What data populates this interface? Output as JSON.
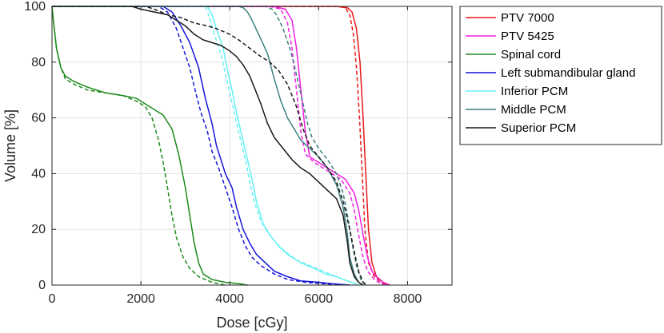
{
  "chart_data": {
    "type": "line",
    "title": "",
    "xlabel": "Dose [cGy]",
    "ylabel": "Volume [%]",
    "xlim": [
      0,
      9000
    ],
    "ylim": [
      0,
      100
    ],
    "xticks": [
      0,
      2000,
      4000,
      6000,
      8000
    ],
    "yticks": [
      0,
      20,
      40,
      60,
      80,
      100
    ],
    "xtick_labels": [
      "0",
      "2000",
      "4000",
      "6000",
      "8000"
    ],
    "ytick_labels": [
      "0",
      "20",
      "40",
      "60",
      "80",
      "100"
    ],
    "grid": true,
    "legend_position": "outside-right-top",
    "line_styles": [
      "solid",
      "dashed"
    ],
    "series": [
      {
        "name": "PTV 7000",
        "color": "#e8181a",
        "solid": [
          [
            0,
            100
          ],
          [
            6400,
            100
          ],
          [
            6650,
            99.5
          ],
          [
            6750,
            98
          ],
          [
            6850,
            92
          ],
          [
            6930,
            80
          ],
          [
            7000,
            60
          ],
          [
            7060,
            40
          ],
          [
            7120,
            20
          ],
          [
            7200,
            8
          ],
          [
            7300,
            3
          ],
          [
            7450,
            1
          ],
          [
            7600,
            0
          ]
        ],
        "dashed": [
          [
            0,
            100
          ],
          [
            6400,
            100
          ],
          [
            6600,
            99.5
          ],
          [
            6700,
            97
          ],
          [
            6780,
            90
          ],
          [
            6850,
            78
          ],
          [
            6920,
            60
          ],
          [
            6980,
            40
          ],
          [
            7040,
            20
          ],
          [
            7120,
            8
          ],
          [
            7250,
            3
          ],
          [
            7400,
            1
          ],
          [
            7550,
            0
          ]
        ]
      },
      {
        "name": "PTV 5425",
        "color": "#f21fe0",
        "solid": [
          [
            0,
            100
          ],
          [
            5000,
            100
          ],
          [
            5250,
            99
          ],
          [
            5400,
            95
          ],
          [
            5500,
            85
          ],
          [
            5600,
            70
          ],
          [
            5700,
            55
          ],
          [
            5800,
            46
          ],
          [
            6000,
            44
          ],
          [
            6300,
            41
          ],
          [
            6600,
            38
          ],
          [
            6800,
            33
          ],
          [
            6900,
            27
          ],
          [
            7000,
            18
          ],
          [
            7100,
            10
          ],
          [
            7200,
            5
          ],
          [
            7350,
            2
          ],
          [
            7500,
            0.5
          ],
          [
            7600,
            0
          ]
        ],
        "dashed": [
          [
            0,
            100
          ],
          [
            4900,
            100
          ],
          [
            5150,
            99
          ],
          [
            5300,
            94
          ],
          [
            5400,
            85
          ],
          [
            5500,
            70
          ],
          [
            5600,
            55
          ],
          [
            5700,
            47
          ],
          [
            5900,
            44
          ],
          [
            6200,
            41
          ],
          [
            6500,
            38
          ],
          [
            6700,
            33
          ],
          [
            6800,
            27
          ],
          [
            6900,
            18
          ],
          [
            7000,
            10
          ],
          [
            7100,
            5
          ],
          [
            7250,
            2
          ],
          [
            7400,
            0.5
          ],
          [
            7500,
            0
          ]
        ]
      },
      {
        "name": "Spinal cord",
        "color": "#1a8a1a",
        "solid": [
          [
            0,
            100
          ],
          [
            30,
            95
          ],
          [
            100,
            85
          ],
          [
            200,
            78
          ],
          [
            300,
            75
          ],
          [
            500,
            73
          ],
          [
            800,
            71
          ],
          [
            1200,
            69
          ],
          [
            1600,
            68
          ],
          [
            1900,
            67
          ],
          [
            2100,
            65
          ],
          [
            2300,
            63
          ],
          [
            2500,
            61
          ],
          [
            2700,
            56
          ],
          [
            2850,
            47
          ],
          [
            3000,
            35
          ],
          [
            3100,
            25
          ],
          [
            3200,
            15
          ],
          [
            3300,
            8
          ],
          [
            3400,
            4
          ],
          [
            3600,
            2
          ],
          [
            3900,
            1
          ],
          [
            4200,
            0.5
          ],
          [
            4400,
            0
          ]
        ],
        "dashed": [
          [
            0,
            100
          ],
          [
            30,
            95
          ],
          [
            100,
            85
          ],
          [
            200,
            78
          ],
          [
            300,
            74
          ],
          [
            500,
            72
          ],
          [
            800,
            70
          ],
          [
            1200,
            69
          ],
          [
            1600,
            68
          ],
          [
            1900,
            66
          ],
          [
            2100,
            64
          ],
          [
            2250,
            60
          ],
          [
            2400,
            52
          ],
          [
            2500,
            44
          ],
          [
            2600,
            35
          ],
          [
            2700,
            25
          ],
          [
            2800,
            17
          ],
          [
            2950,
            10
          ],
          [
            3100,
            6
          ],
          [
            3300,
            3
          ],
          [
            3600,
            1
          ],
          [
            3900,
            0
          ]
        ]
      },
      {
        "name": "Left submandibular gland",
        "color": "#1515d9",
        "solid": [
          [
            0,
            100
          ],
          [
            2500,
            100
          ],
          [
            2700,
            98
          ],
          [
            2900,
            93
          ],
          [
            3100,
            87
          ],
          [
            3300,
            78
          ],
          [
            3450,
            67
          ],
          [
            3600,
            58
          ],
          [
            3700,
            50
          ],
          [
            3800,
            45
          ],
          [
            3900,
            40
          ],
          [
            4050,
            35
          ],
          [
            4150,
            28
          ],
          [
            4300,
            20
          ],
          [
            4450,
            15
          ],
          [
            4600,
            11
          ],
          [
            4800,
            8
          ],
          [
            5000,
            5
          ],
          [
            5300,
            3
          ],
          [
            5600,
            1.5
          ],
          [
            6000,
            1
          ],
          [
            6300,
            0.5
          ],
          [
            6700,
            0
          ]
        ],
        "dashed": [
          [
            0,
            100
          ],
          [
            2400,
            100
          ],
          [
            2600,
            98
          ],
          [
            2800,
            92
          ],
          [
            2950,
            85
          ],
          [
            3100,
            78
          ],
          [
            3250,
            68
          ],
          [
            3350,
            62
          ],
          [
            3500,
            55
          ],
          [
            3600,
            48
          ],
          [
            3750,
            42
          ],
          [
            3900,
            35
          ],
          [
            4050,
            28
          ],
          [
            4200,
            20
          ],
          [
            4350,
            14
          ],
          [
            4500,
            10
          ],
          [
            4700,
            7
          ],
          [
            5000,
            4
          ],
          [
            5300,
            2
          ],
          [
            5700,
            1
          ],
          [
            6100,
            0.5
          ],
          [
            6500,
            0
          ]
        ]
      },
      {
        "name": "Inferior PCM",
        "color": "#66f0f5",
        "solid": [
          [
            0,
            100
          ],
          [
            3500,
            100
          ],
          [
            3600,
            97
          ],
          [
            3700,
            92
          ],
          [
            3850,
            85
          ],
          [
            3950,
            77
          ],
          [
            4050,
            70
          ],
          [
            4150,
            62
          ],
          [
            4250,
            55
          ],
          [
            4400,
            45
          ],
          [
            4500,
            38
          ],
          [
            4600,
            30
          ],
          [
            4750,
            22
          ],
          [
            4900,
            18
          ],
          [
            5100,
            14
          ],
          [
            5300,
            11
          ],
          [
            5600,
            8
          ],
          [
            5900,
            6
          ],
          [
            6150,
            4
          ],
          [
            6400,
            3
          ],
          [
            6650,
            1.5
          ],
          [
            6900,
            0
          ]
        ],
        "dashed": [
          [
            0,
            100
          ],
          [
            3450,
            100
          ],
          [
            3550,
            96
          ],
          [
            3650,
            90
          ],
          [
            3800,
            83
          ],
          [
            3900,
            76
          ],
          [
            4000,
            69
          ],
          [
            4100,
            62
          ],
          [
            4200,
            55
          ],
          [
            4350,
            45
          ],
          [
            4450,
            37
          ],
          [
            4550,
            30
          ],
          [
            4700,
            23
          ],
          [
            4850,
            19
          ],
          [
            5050,
            15
          ],
          [
            5250,
            12
          ],
          [
            5500,
            9
          ],
          [
            5800,
            7
          ],
          [
            6100,
            5
          ],
          [
            6400,
            3
          ],
          [
            6650,
            1.5
          ],
          [
            6900,
            0
          ]
        ]
      },
      {
        "name": "Middle PCM",
        "color": "#3d8080",
        "solid": [
          [
            0,
            100
          ],
          [
            4200,
            100
          ],
          [
            4300,
            99.5
          ],
          [
            4400,
            98
          ],
          [
            4500,
            95
          ],
          [
            4650,
            90
          ],
          [
            4850,
            83
          ],
          [
            5000,
            74
          ],
          [
            5150,
            66
          ],
          [
            5300,
            60
          ],
          [
            5450,
            56
          ],
          [
            5600,
            52
          ],
          [
            5800,
            49
          ],
          [
            6000,
            46
          ],
          [
            6200,
            42
          ],
          [
            6400,
            36
          ],
          [
            6550,
            28
          ],
          [
            6650,
            18
          ],
          [
            6700,
            10
          ],
          [
            6800,
            4
          ],
          [
            6900,
            1
          ],
          [
            7000,
            0
          ]
        ],
        "dashed": [
          [
            0,
            100
          ],
          [
            4800,
            100
          ],
          [
            4950,
            99
          ],
          [
            5050,
            97
          ],
          [
            5200,
            92
          ],
          [
            5350,
            85
          ],
          [
            5450,
            79
          ],
          [
            5550,
            72
          ],
          [
            5650,
            65
          ],
          [
            5750,
            58
          ],
          [
            5850,
            53
          ],
          [
            6000,
            49
          ],
          [
            6200,
            45
          ],
          [
            6400,
            40
          ],
          [
            6550,
            33
          ],
          [
            6650,
            25
          ],
          [
            6750,
            15
          ],
          [
            6850,
            7
          ],
          [
            6950,
            2
          ],
          [
            7050,
            0
          ]
        ]
      },
      {
        "name": "Superior PCM",
        "color": "#1a1a1a",
        "solid": [
          [
            0,
            100
          ],
          [
            1800,
            100
          ],
          [
            2000,
            99
          ],
          [
            2300,
            98
          ],
          [
            2600,
            97
          ],
          [
            2800,
            95
          ],
          [
            3000,
            93
          ],
          [
            3200,
            90
          ],
          [
            3400,
            88
          ],
          [
            3600,
            87
          ],
          [
            3800,
            86
          ],
          [
            4000,
            84
          ],
          [
            4150,
            82
          ],
          [
            4300,
            79
          ],
          [
            4450,
            75
          ],
          [
            4550,
            71
          ],
          [
            4700,
            65
          ],
          [
            4850,
            58
          ],
          [
            5000,
            53
          ],
          [
            5200,
            49
          ],
          [
            5400,
            45
          ],
          [
            5600,
            42
          ],
          [
            5800,
            40
          ],
          [
            6000,
            37
          ],
          [
            6200,
            34
          ],
          [
            6400,
            31
          ],
          [
            6550,
            25
          ],
          [
            6650,
            15
          ],
          [
            6700,
            8
          ],
          [
            6800,
            3
          ],
          [
            6900,
            1
          ],
          [
            7000,
            0
          ]
        ],
        "dashed": [
          [
            0,
            100
          ],
          [
            2100,
            100
          ],
          [
            2300,
            99
          ],
          [
            2600,
            97
          ],
          [
            2900,
            96
          ],
          [
            3200,
            94
          ],
          [
            3500,
            93
          ],
          [
            3700,
            92
          ],
          [
            4000,
            90
          ],
          [
            4200,
            88
          ],
          [
            4450,
            85
          ],
          [
            4700,
            82
          ],
          [
            4900,
            80
          ],
          [
            5100,
            77
          ],
          [
            5300,
            72
          ],
          [
            5500,
            64
          ],
          [
            5650,
            56
          ],
          [
            5800,
            50
          ],
          [
            6000,
            46
          ],
          [
            6200,
            42
          ],
          [
            6400,
            37
          ],
          [
            6550,
            30
          ],
          [
            6700,
            20
          ],
          [
            6800,
            12
          ],
          [
            6900,
            5
          ],
          [
            7000,
            1
          ],
          [
            7100,
            0
          ]
        ]
      }
    ]
  }
}
